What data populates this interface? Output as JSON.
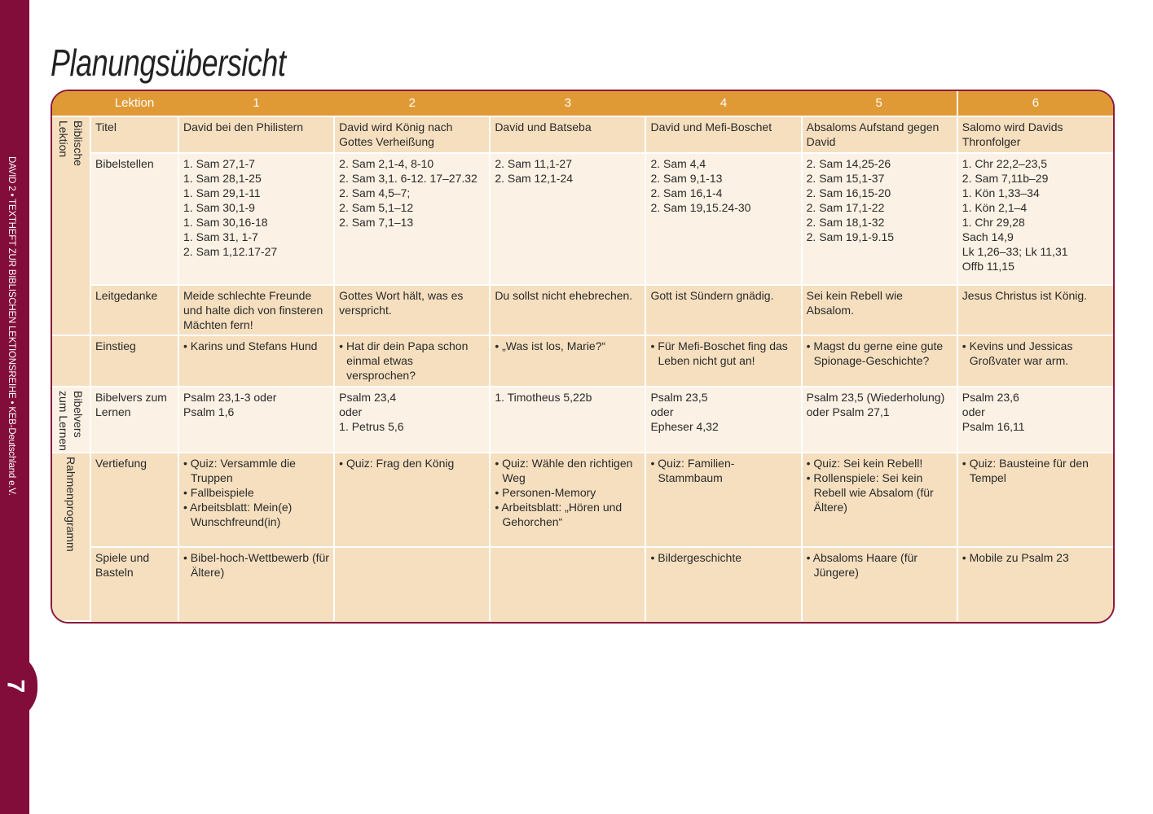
{
  "sidebar": {
    "text": "DAVID 2 • TEXTHEFT ZUR BIBLISCHEN LEKTIONSREIHE • KEB-Deutschland e.V.",
    "page_number": "7"
  },
  "title": "Planungsübersicht",
  "colors": {
    "sidebar": "#820d3a",
    "header": "#e09a35",
    "row_dark": "#f5dfbf",
    "row_light": "#fbf1e4",
    "group": "#f0cc98"
  },
  "table": {
    "header_label": "Lektion",
    "columns": [
      "1",
      "2",
      "3",
      "4",
      "5",
      "6"
    ],
    "groups": [
      {
        "label": [
          "Biblische",
          "Lektion"
        ],
        "rows": 3
      },
      {
        "label": [],
        "rows": 1
      },
      {
        "label": [
          "Bibelvers",
          "zum Lernen"
        ],
        "rows": 1
      },
      {
        "label": [
          "Rahmenprogramm"
        ],
        "rows": 2
      }
    ],
    "rows": [
      {
        "label": "Titel",
        "style": "dark",
        "cells": [
          [
            "David bei den Philistern"
          ],
          [
            "David wird König nach Gottes Verheißung"
          ],
          [
            "David und Batseba"
          ],
          [
            "David und Mefi-Boschet"
          ],
          [
            "Absaloms Aufstand gegen David"
          ],
          [
            "Salomo wird Davids Thronfolger"
          ]
        ]
      },
      {
        "label": "Bibelstellen",
        "style": "light",
        "cells": [
          [
            "1. Sam 27,1-7",
            "1. Sam 28,1-25",
            "1. Sam 29,1-11",
            "1. Sam 30,1-9",
            "1. Sam 30,16-18",
            "1. Sam 31, 1-7",
            "2. Sam 1,12.17-27"
          ],
          [
            "2. Sam 2,1-4, 8-10",
            "2. Sam 3,1. 6-12. 17–27.32",
            "2. Sam 4,5–7;",
            "2. Sam 5,1–12",
            "2. Sam 7,1–13"
          ],
          [
            "2. Sam 11,1-27",
            "2. Sam 12,1-24"
          ],
          [
            "2. Sam 4,4",
            "2. Sam 9,1-13",
            "2. Sam 16,1-4",
            "2. Sam 19,15.24-30"
          ],
          [
            "2. Sam 14,25-26",
            "2. Sam 15,1-37",
            "2. Sam 16,15-20",
            "2. Sam 17,1-22",
            "2. Sam 18,1-32",
            "2. Sam 19,1-9.15"
          ],
          [
            "1. Chr 22,2–23,5",
            "2. Sam 7,11b–29",
            "1. Kön 1,33–34",
            "1. Kön 2,1–4",
            "1. Chr 29,28",
            "Sach 14,9",
            "Lk 1,26–33; Lk 11,31",
            "Offb 11,15"
          ]
        ]
      },
      {
        "label": "Leitgedanke",
        "style": "dark",
        "cells": [
          [
            "Meide schlechte Freunde und halte dich von finsteren Mächten fern!"
          ],
          [
            "Gottes Wort hält, was es verspricht."
          ],
          [
            "Du sollst nicht ehebrechen."
          ],
          [
            "Gott ist Sündern gnädig."
          ],
          [
            "Sei kein Rebell wie Absalom."
          ],
          [
            "Jesus Christus ist König."
          ]
        ]
      },
      {
        "label": "Einstieg",
        "style": "dark",
        "bullets": true,
        "cells": [
          [
            "Karins und Stefans Hund"
          ],
          [
            "Hat dir dein Papa schon einmal etwas versprochen?"
          ],
          [
            "„Was ist los, Marie?“"
          ],
          [
            "Für Mefi-Boschet fing das Leben nicht gut an!"
          ],
          [
            "Magst du gerne eine gute Spionage-Geschichte?"
          ],
          [
            "Kevins und Jessicas Großvater war arm."
          ]
        ]
      },
      {
        "label": "Bibelvers zum Lernen",
        "style": "light",
        "cells": [
          [
            "Psalm 23,1-3 oder",
            "Psalm 1,6"
          ],
          [
            "Psalm 23,4",
            "oder",
            "1. Petrus 5,6"
          ],
          [
            "1. Timotheus 5,22b"
          ],
          [
            "Psalm 23,5",
            "oder",
            "Epheser 4,32"
          ],
          [
            "Psalm 23,5 (Wiederholung) oder Psalm 27,1"
          ],
          [
            "Psalm 23,6",
            "oder",
            "Psalm 16,11"
          ]
        ]
      },
      {
        "label": "Vertiefung",
        "style": "dark",
        "bullets": true,
        "cells": [
          [
            "Quiz: Versammle die Truppen",
            "Fallbeispiele",
            "Arbeitsblatt: Mein(e) Wunschfreund(in)"
          ],
          [
            "Quiz: Frag den König"
          ],
          [
            "Quiz: Wähle den richtigen Weg",
            "Personen-Memory",
            "Arbeitsblatt: „Hören und Gehorchen“"
          ],
          [
            "Quiz: Familien-Stammbaum"
          ],
          [
            "Quiz: Sei kein Rebell!",
            "Rollenspiele: Sei kein Rebell wie Absalom (für Ältere)"
          ],
          [
            "Quiz: Bausteine für den Tempel"
          ]
        ]
      },
      {
        "label": "Spiele und Basteln",
        "style": "dark",
        "bullets": true,
        "cells": [
          [
            "Bibel-hoch-Wettbewerb (für Ältere)"
          ],
          [],
          [],
          [
            "Bildergeschichte"
          ],
          [
            "Absaloms Haare (für Jüngere)"
          ],
          [
            "Mobile zu Psalm 23"
          ]
        ]
      }
    ]
  }
}
